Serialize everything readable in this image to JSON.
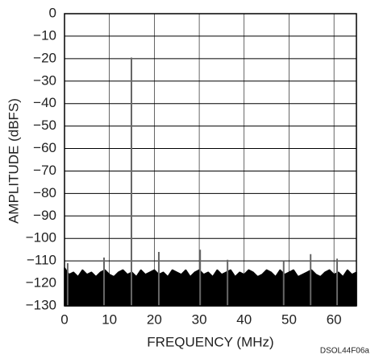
{
  "chart_data": {
    "type": "spectrum",
    "xlabel": "FREQUENCY (MHz)",
    "ylabel": "AMPLITUDE (dBFS)",
    "note": "DSOL44F06a",
    "xlim": [
      0,
      65
    ],
    "ylim": [
      -130,
      0
    ],
    "xticks": [
      0,
      10,
      20,
      30,
      40,
      50,
      60
    ],
    "yticks": [
      0,
      {
        "value": -10,
        "label": "−10"
      },
      {
        "value": -20,
        "label": "−20"
      },
      {
        "value": -30,
        "label": "−30"
      },
      {
        "value": -40,
        "label": "−40"
      },
      {
        "value": -50,
        "label": "−50"
      },
      {
        "value": -60,
        "label": "−60"
      },
      {
        "value": -70,
        "label": "−70"
      },
      {
        "value": -80,
        "label": "−80"
      },
      {
        "value": -90,
        "label": "−90"
      },
      {
        "value": -100,
        "label": "−100"
      },
      {
        "value": -110,
        "label": "−110"
      },
      {
        "value": -120,
        "label": "−120"
      },
      {
        "value": -130,
        "label": "−130"
      }
    ],
    "grid": true,
    "x": [
      0,
      1,
      2,
      3,
      4,
      5,
      6,
      7,
      8,
      9,
      10,
      11,
      12,
      13,
      14,
      15,
      16,
      17,
      18,
      19,
      20,
      21,
      22,
      23,
      24,
      25,
      26,
      27,
      28,
      29,
      30,
      31,
      32,
      33,
      34,
      35,
      36,
      37,
      38,
      39,
      40,
      41,
      42,
      43,
      44,
      45,
      46,
      47,
      48,
      49,
      50,
      51,
      52,
      53,
      54,
      55,
      56,
      57,
      58,
      59,
      60,
      61,
      62,
      63,
      64,
      65
    ],
    "series": [
      {
        "color": "#000000",
        "values": [
          -113,
          -116,
          -115,
          -117,
          -114,
          -116,
          -115,
          -117,
          -115,
          -114,
          -116,
          -117,
          -115,
          -114,
          -116,
          -115,
          -117,
          -114,
          -116,
          -115,
          -114,
          -116,
          -115,
          -117,
          -114,
          -115,
          -116,
          -114,
          -117,
          -115,
          -114,
          -116,
          -115,
          -117,
          -114,
          -116,
          -115,
          -114,
          -117,
          -115,
          -116,
          -114,
          -115,
          -117,
          -116,
          -114,
          -115,
          -117,
          -114,
          -116,
          -115,
          -114,
          -117,
          -116,
          -115,
          -114,
          -116,
          -117,
          -115,
          -114,
          -116,
          -115,
          -117,
          -114,
          -116,
          -115
        ]
      }
    ],
    "spikes": {
      "color": "#666666",
      "x": [
        0.7,
        8.8,
        14.9,
        21.0,
        30.2,
        36.3,
        48.8,
        54.8,
        60.7
      ],
      "values": [
        -111,
        -108.5,
        -19.5,
        -106,
        -105,
        -109.5,
        -110,
        -107,
        -109
      ]
    }
  }
}
